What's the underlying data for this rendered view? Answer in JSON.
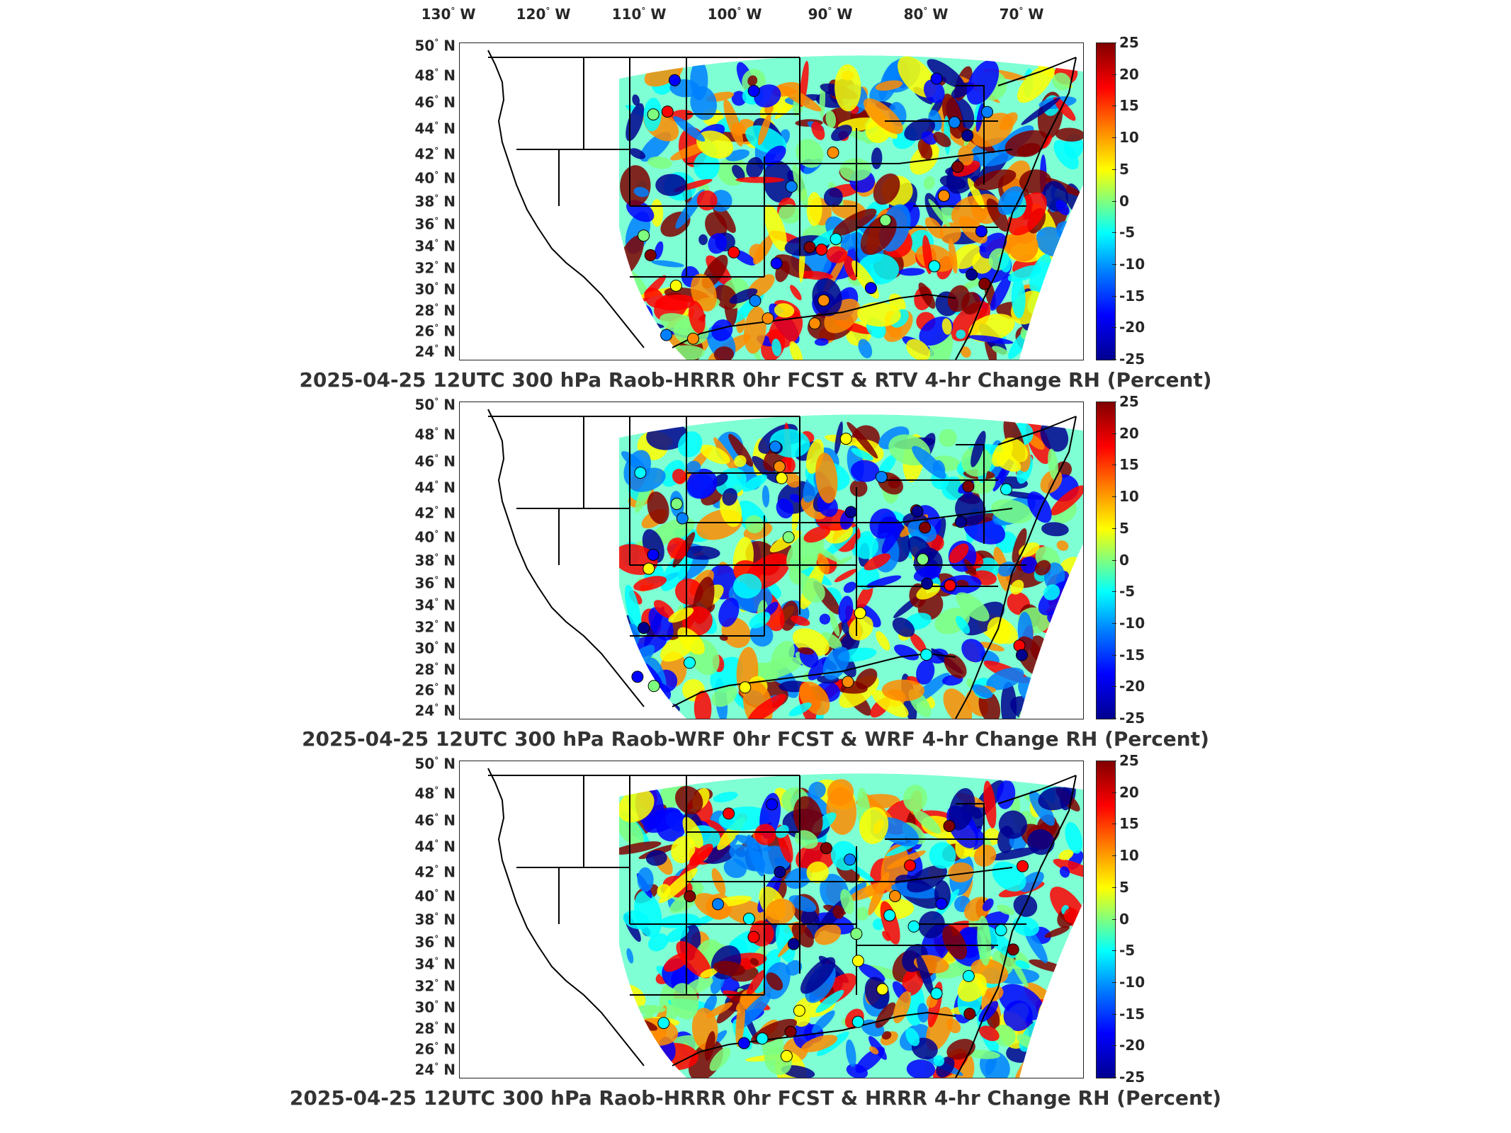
{
  "longitude_labels": [
    "130",
    "120",
    "110",
    "100",
    "90",
    "80",
    "70"
  ],
  "longitude_suffix": "W",
  "latitude_labels": [
    "50",
    "48",
    "46",
    "44",
    "42",
    "40",
    "38",
    "36",
    "34",
    "32",
    "30",
    "28",
    "26",
    "24"
  ],
  "latitude_suffix": "N",
  "colorbar_ticks": [
    "25",
    "20",
    "15",
    "10",
    "5",
    "0",
    "-5",
    "-10",
    "-15",
    "-20",
    "-25"
  ],
  "colorscale": {
    "max": 25,
    "min": -25,
    "colors": [
      "#800000",
      "#ff0000",
      "#ff8c00",
      "#ffff00",
      "#7fff7f",
      "#00ffff",
      "#0080ff",
      "#0000ff",
      "#00008f"
    ]
  },
  "panels": [
    {
      "title": "2025-04-25 12UTC 300 hPa Raob-HRRR 0hr FCST & RTV 4-hr Change RH (Percent)"
    },
    {
      "title": "2025-04-25 12UTC 300 hPa Raob-WRF 0hr FCST & WRF 4-hr Change RH (Percent)"
    },
    {
      "title": "2025-04-25 12UTC 300 hPa Raob-HRRR 0hr FCST & HRRR 4-hr Change RH (Percent)"
    }
  ]
}
